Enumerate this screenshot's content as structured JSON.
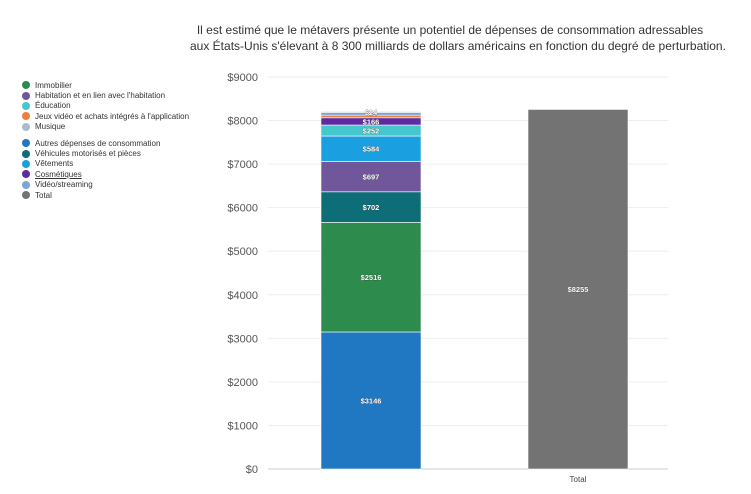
{
  "chart_data": {
    "type": "bar",
    "stacked": true,
    "title_lines": [
      "Il est estimé que le métavers présente un potentiel de dépenses de consommation adressables",
      "aux États-Unis s'élevant à 8 300 milliards de dollars américains en fonction du degré de perturbation."
    ],
    "categories": [
      "",
      "Total"
    ],
    "ylim": [
      0,
      9000
    ],
    "yticks": [
      0,
      1000,
      2000,
      3000,
      4000,
      5000,
      6000,
      7000,
      8000,
      9000
    ],
    "ytick_labels": [
      "$0",
      "$1000",
      "$2000",
      "$3000",
      "$4000",
      "$5000",
      "$6000",
      "$7000",
      "$8000",
      "$9000"
    ],
    "grid": true,
    "legend_position": "left",
    "series": [
      {
        "name": "Autres dépenses de consommation",
        "color": "#1f78c1",
        "values": [
          3146,
          null
        ],
        "labels": [
          "$3146",
          ""
        ]
      },
      {
        "name": "Immobilier",
        "color": "#2e8b4e",
        "values": [
          2516,
          null
        ],
        "labels": [
          "$2516",
          ""
        ]
      },
      {
        "name": "Véhicules motorisés et pièces",
        "color": "#0e6e78",
        "values": [
          702,
          null
        ],
        "labels": [
          "$702",
          ""
        ]
      },
      {
        "name": "Habitation et en lien avec l'habitation",
        "color": "#70579c",
        "values": [
          697,
          null
        ],
        "labels": [
          "$697",
          ""
        ]
      },
      {
        "name": "Vêtements",
        "color": "#1aa0e0",
        "values": [
          584,
          null
        ],
        "labels": [
          "$584",
          ""
        ]
      },
      {
        "name": "Éducation",
        "color": "#44c8cc",
        "values": [
          252,
          null
        ],
        "labels": [
          "$252",
          ""
        ]
      },
      {
        "name": "Cosmétiques",
        "color": "#5e2aa0",
        "values": [
          166,
          null
        ],
        "labels": [
          "$166",
          ""
        ]
      },
      {
        "name": "Jeux vidéo et achats intégrés à l'application",
        "color": "#f07d3a",
        "values": [
          60,
          null
        ],
        "labels": [
          "",
          ""
        ]
      },
      {
        "name": "Vidéo/streaming",
        "color": "#7aa5d6",
        "values": [
          60,
          null
        ],
        "labels": [
          "",
          ""
        ]
      },
      {
        "name": "Musique",
        "color": "#a9bccc",
        "values": [
          24,
          null
        ],
        "labels": [
          "$24",
          ""
        ]
      },
      {
        "name": "Total",
        "color": "#737373",
        "values": [
          null,
          8255
        ],
        "labels": [
          "",
          "$8255"
        ]
      }
    ],
    "legend_order": [
      "Immobilier",
      "Habitation et en lien avec l'habitation",
      "Éducation",
      "Jeux vidéo et achats intégrés à l'application",
      "Musique",
      "Autres dépenses de consommation",
      "Véhicules motorisés et pièces",
      "Vêtements",
      "Cosmétiques",
      "Vidéo/streaming",
      "Total"
    ]
  }
}
